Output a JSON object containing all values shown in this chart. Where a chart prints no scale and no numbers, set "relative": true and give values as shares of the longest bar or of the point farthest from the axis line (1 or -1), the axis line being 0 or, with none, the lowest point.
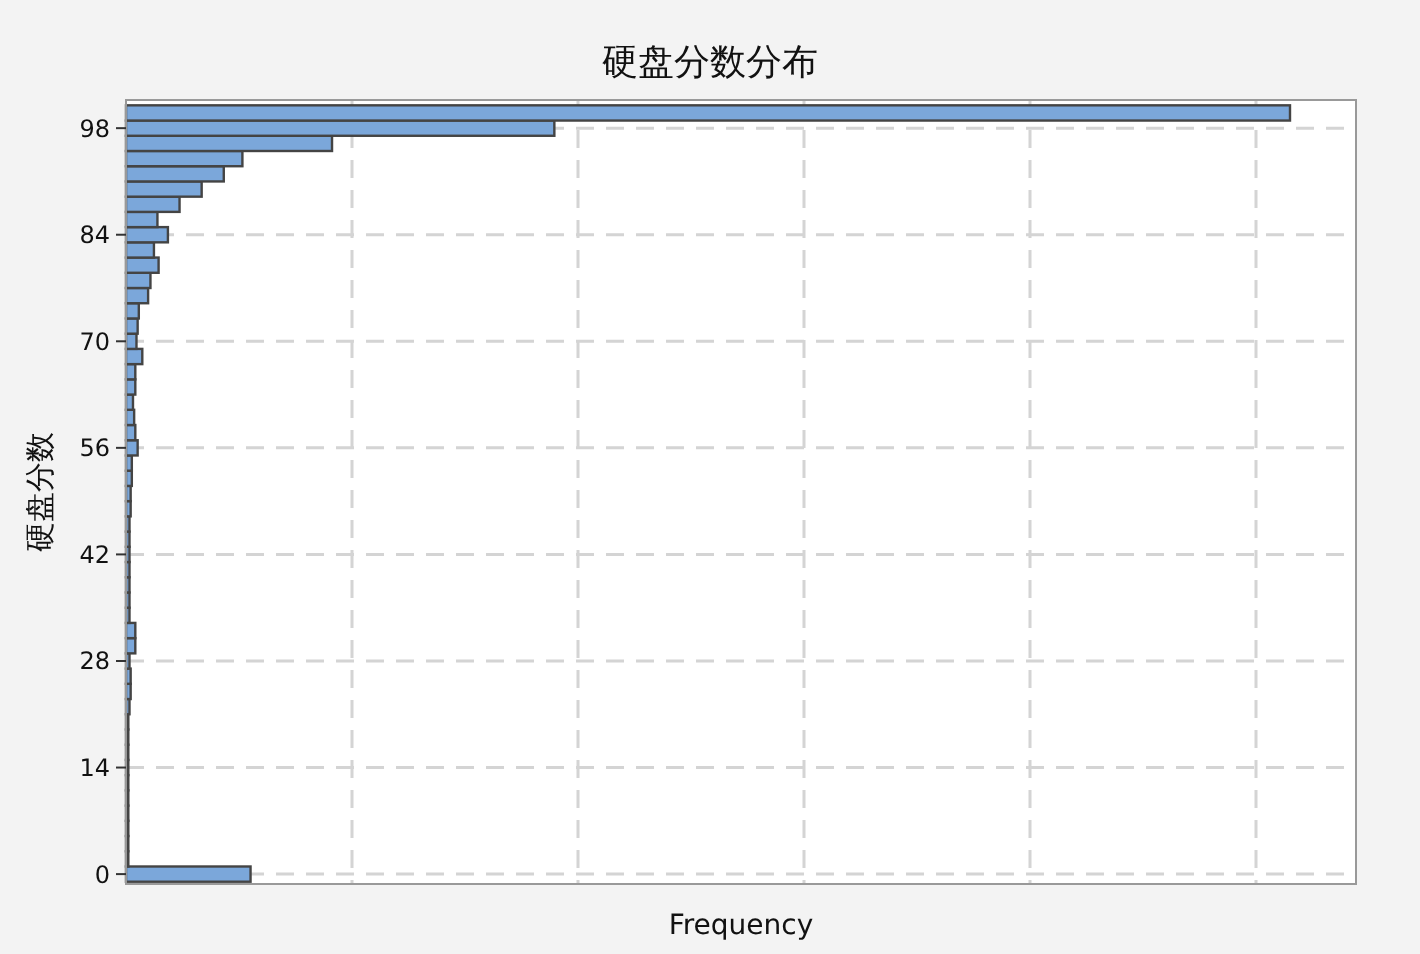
{
  "chart_data": {
    "type": "bar",
    "orientation": "horizontal",
    "relative": true,
    "title": "硬盘分数分布",
    "xlabel": "Frequency",
    "ylabel": "硬盘分数",
    "x": [
      0,
      2,
      4,
      6,
      8,
      10,
      12,
      14,
      16,
      18,
      20,
      22,
      24,
      26,
      28,
      30,
      32,
      34,
      36,
      38,
      40,
      42,
      44,
      46,
      48,
      50,
      52,
      54,
      56,
      58,
      60,
      62,
      64,
      66,
      68,
      70,
      72,
      74,
      76,
      78,
      80,
      82,
      84,
      86,
      88,
      90,
      92,
      94,
      96,
      98,
      100
    ],
    "values": [
      0.107,
      0.002,
      0.002,
      0.002,
      0.002,
      0.002,
      0.002,
      0.002,
      0.002,
      0.002,
      0.002,
      0.003,
      0.004,
      0.004,
      0.003,
      0.008,
      0.008,
      0.003,
      0.003,
      0.003,
      0.003,
      0.003,
      0.003,
      0.003,
      0.004,
      0.004,
      0.005,
      0.005,
      0.01,
      0.008,
      0.007,
      0.006,
      0.008,
      0.008,
      0.014,
      0.009,
      0.01,
      0.011,
      0.019,
      0.021,
      0.028,
      0.024,
      0.036,
      0.027,
      0.046,
      0.065,
      0.084,
      0.1,
      0.177,
      0.368,
      1
    ],
    "color": "#7ba7da",
    "ylim": [
      -1.3,
      101.7
    ],
    "yticks": [
      0,
      14,
      28,
      42,
      56,
      70,
      84,
      98
    ],
    "grid": true
  }
}
